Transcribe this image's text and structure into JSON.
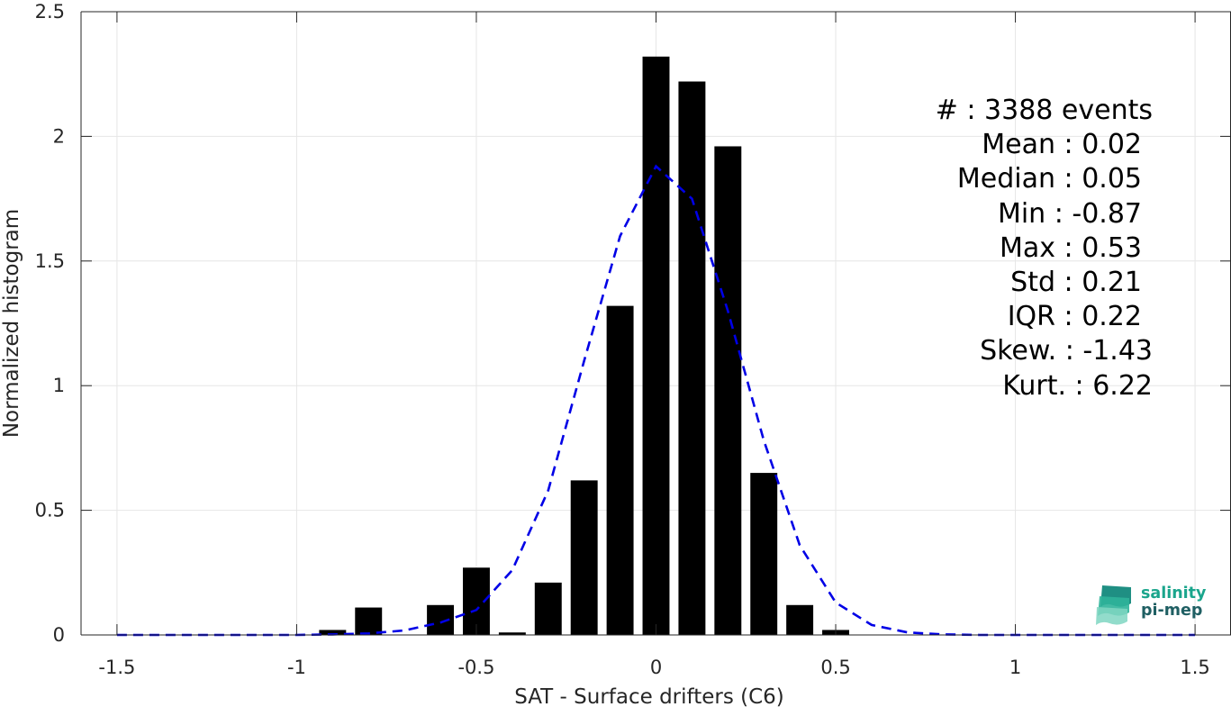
{
  "chart_data": {
    "type": "bar",
    "title": "",
    "xlabel": "SAT - Surface drifters (C6)",
    "ylabel": "Normalized histogram",
    "xlim": [
      -1.6,
      1.6
    ],
    "ylim": [
      0,
      2.5
    ],
    "grid": true,
    "bar_width": 0.075,
    "bar_color": "#000000",
    "xticks": [
      -1.5,
      -1,
      -0.5,
      0,
      0.5,
      1,
      1.5
    ],
    "xtick_labels": [
      "-1.5",
      "-1",
      "-0.5",
      "0",
      "0.5",
      "1",
      "1.5"
    ],
    "yticks": [
      0,
      0.5,
      1,
      1.5,
      2,
      2.5
    ],
    "ytick_labels": [
      "0",
      "0.5",
      "1",
      "1.5",
      "2",
      "2.5"
    ],
    "bars": {
      "x": [
        -0.9,
        -0.8,
        -0.6,
        -0.5,
        -0.4,
        -0.3,
        -0.2,
        -0.1,
        0,
        0.1,
        0.2,
        0.3,
        0.4,
        0.5
      ],
      "values": [
        0.02,
        0.11,
        0.12,
        0.27,
        0.01,
        0.21,
        0.62,
        1.32,
        2.32,
        2.22,
        1.96,
        0.65,
        0.12,
        0.02
      ]
    },
    "fit_curve": {
      "style": "dashed",
      "color": "#0000e6",
      "x": [
        -1.5,
        -1.4,
        -1.3,
        -1.2,
        -1.1,
        -1.0,
        -0.9,
        -0.8,
        -0.7,
        -0.6,
        -0.5,
        -0.4,
        -0.3,
        -0.2,
        -0.1,
        0,
        0.1,
        0.2,
        0.3,
        0.4,
        0.5,
        0.6,
        0.7,
        0.8,
        0.9,
        1.0,
        1.1,
        1.2,
        1.3,
        1.4,
        1.5
      ],
      "y": [
        0,
        0,
        0,
        0,
        0,
        0,
        0.002,
        0.006,
        0.018,
        0.05,
        0.1,
        0.26,
        0.58,
        1.1,
        1.6,
        1.88,
        1.75,
        1.3,
        0.78,
        0.36,
        0.13,
        0.04,
        0.01,
        0.002,
        0,
        0,
        0,
        0,
        0,
        0,
        0
      ]
    },
    "stats_lines": [
      "#  : 3388 events",
      "Mean : 0.02",
      "Median : 0.05",
      "Min : -0.87",
      "Max : 0.53",
      "Std : 0.21",
      "IQR : 0.22",
      "Skew. : -1.43",
      "Kurt. : 6.22"
    ]
  },
  "logo": {
    "line1": "salinity",
    "line2": "pi-mep",
    "color_teal": "#1aa58c",
    "color_dark": "#1f5f63"
  }
}
